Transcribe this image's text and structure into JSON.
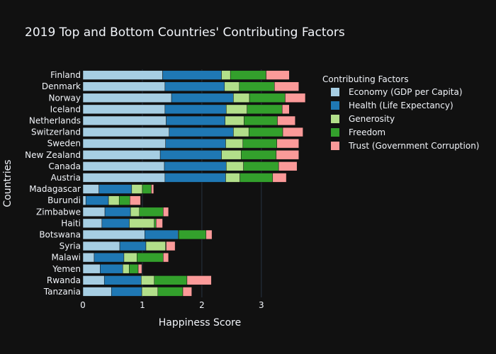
{
  "chart_data": {
    "type": "bar",
    "orientation": "horizontal",
    "stacked": true,
    "title": "2019 Top and Bottom Countries' Contributing Factors",
    "xlabel": "Happiness Score",
    "ylabel": "Countries",
    "xlim": [
      0,
      3.8
    ],
    "xticks": [
      0,
      1,
      2,
      3
    ],
    "grid": "vertical",
    "legend_title": "Contributing Factors",
    "legend_position": "right",
    "categories": [
      "Finland",
      "Denmark",
      "Norway",
      "Iceland",
      "Netherlands",
      "Switzerland",
      "Sweden",
      "New Zealand",
      "Canada",
      "Austria",
      "Madagascar",
      "Burundi",
      "Zimbabwe",
      "Haiti",
      "Botswana",
      "Syria",
      "Malawi",
      "Yemen",
      "Rwanda",
      "Tanzania"
    ],
    "series": [
      {
        "name": "Economy (GDP per Capita)",
        "color": "#a6cee3",
        "values": [
          1.34,
          1.38,
          1.49,
          1.38,
          1.4,
          1.45,
          1.39,
          1.3,
          1.37,
          1.38,
          0.27,
          0.05,
          0.37,
          0.32,
          1.04,
          0.62,
          0.19,
          0.29,
          0.36,
          0.48
        ]
      },
      {
        "name": "Health (Life Expectancy)",
        "color": "#1f78b4",
        "values": [
          0.99,
          1.0,
          1.04,
          1.03,
          0.99,
          1.08,
          1.01,
          1.03,
          1.04,
          1.02,
          0.55,
          0.38,
          0.43,
          0.46,
          0.56,
          0.44,
          0.5,
          0.38,
          0.62,
          0.51
        ]
      },
      {
        "name": "Generosity",
        "color": "#b2df8a",
        "values": [
          0.15,
          0.25,
          0.27,
          0.35,
          0.32,
          0.26,
          0.29,
          0.33,
          0.29,
          0.24,
          0.18,
          0.18,
          0.15,
          0.42,
          0.01,
          0.33,
          0.22,
          0.11,
          0.22,
          0.27
        ]
      },
      {
        "name": "Freedom",
        "color": "#33a02c",
        "values": [
          0.6,
          0.59,
          0.6,
          0.59,
          0.56,
          0.57,
          0.57,
          0.59,
          0.59,
          0.55,
          0.15,
          0.18,
          0.4,
          0.03,
          0.46,
          0.01,
          0.44,
          0.15,
          0.55,
          0.42
        ]
      },
      {
        "name": "Trust (Government Corruption)",
        "color": "#fb9a99",
        "values": [
          0.39,
          0.41,
          0.34,
          0.12,
          0.3,
          0.34,
          0.37,
          0.38,
          0.31,
          0.23,
          0.04,
          0.18,
          0.09,
          0.11,
          0.1,
          0.15,
          0.09,
          0.06,
          0.41,
          0.15
        ]
      }
    ]
  }
}
